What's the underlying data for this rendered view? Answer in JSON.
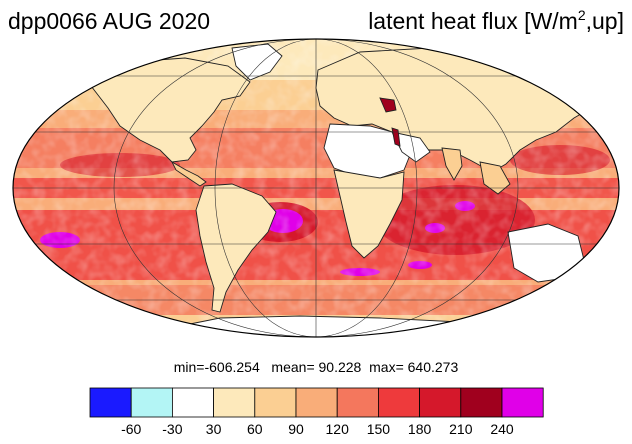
{
  "title": {
    "left": "dpp0066 AUG 2020",
    "right_main": "latent heat flux [W/m",
    "right_sup": "2",
    "right_end": ",up]"
  },
  "stats": {
    "min_label": "min=",
    "min": "-606.254",
    "mean_label": "mean=",
    "mean": "90.228",
    "max_label": "max=",
    "max": "640.273"
  },
  "colorbar": {
    "colors": [
      "#1a1aff",
      "#b3f5f5",
      "#ffffff",
      "#fde9bb",
      "#fbcf93",
      "#f9ad79",
      "#f4775d",
      "#ee3a3c",
      "#d5182b",
      "#a0001e",
      "#e000e8"
    ],
    "ticks": [
      "-60",
      "-30",
      "30",
      "60",
      "90",
      "120",
      "150",
      "180",
      "210",
      "240"
    ]
  },
  "map": {
    "projection": "Mollweide",
    "field": "latent heat flux",
    "ocean_color": "#f7a47a",
    "land_color": "#fde8c0"
  }
}
